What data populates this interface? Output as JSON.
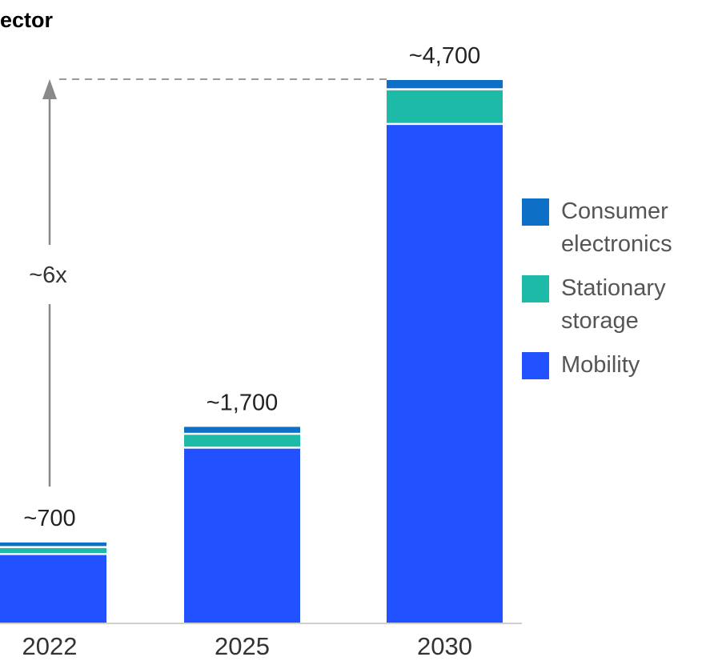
{
  "title": "ector",
  "chart_data": {
    "type": "bar",
    "stacked": true,
    "categories": [
      "2022",
      "2025",
      "2030"
    ],
    "series": [
      {
        "name": "Mobility",
        "color": "#2251ff",
        "values": [
          600,
          1520,
          4320
        ]
      },
      {
        "name": "Stationary storage",
        "color": "#1dbaa7",
        "values": [
          60,
          120,
          300
        ]
      },
      {
        "name": "Consumer electronics",
        "color": "#0d6fc6",
        "values": [
          40,
          60,
          80
        ]
      }
    ],
    "totals": [
      "~700",
      "~1,700",
      "~4,700"
    ],
    "annotation": "~6x",
    "ylim": [
      0,
      4700
    ],
    "grid": false,
    "legend_position": "right"
  },
  "legend": {
    "items": [
      {
        "label_lines": [
          "Consumer",
          "electronics"
        ],
        "color": "#0d6fc6"
      },
      {
        "label_lines": [
          "Stationary",
          "storage"
        ],
        "color": "#1dbaa7"
      },
      {
        "label_lines": [
          "Mobility"
        ],
        "color": "#2251ff"
      }
    ]
  }
}
